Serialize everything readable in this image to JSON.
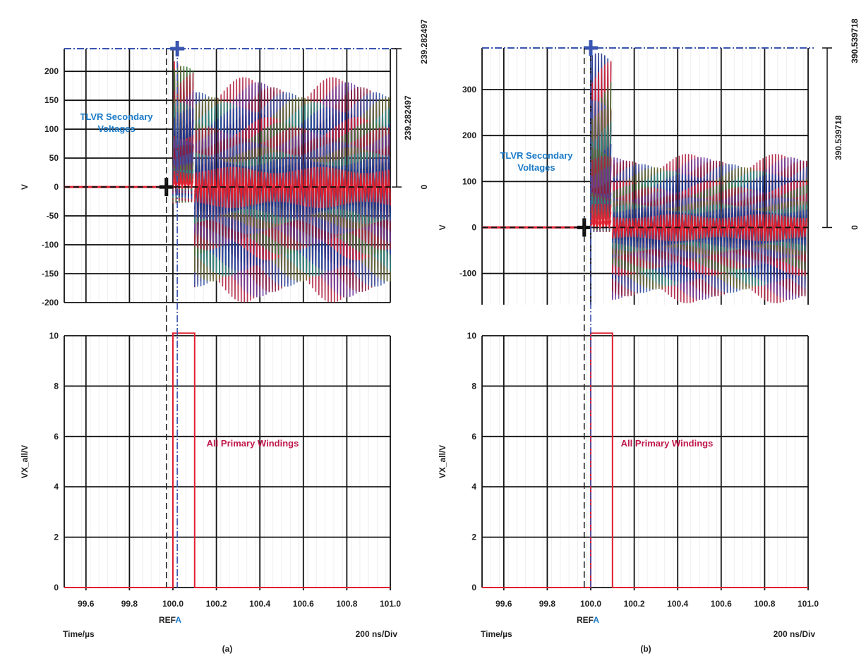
{
  "colors": {
    "annotation_blue": "#1a7ac8",
    "annotation_red": "#c0184a",
    "trace_red": "#e02030",
    "cursor_blue": "#3a55b0"
  },
  "chart_data": [
    {
      "panel": "a",
      "position": "top",
      "type": "line",
      "ylabel": "V",
      "ylim": [
        -200,
        239.282497
      ],
      "yticks": [
        200,
        150,
        100,
        50,
        0,
        -50,
        -100,
        -150,
        -200
      ],
      "xlim": [
        99.5,
        101.0
      ],
      "grid": true,
      "annotation": "TLVR Secondary Voltages",
      "cursor_readout": {
        "top": "239.282497",
        "span": "239.282497",
        "bottom": "0"
      },
      "cursor_x": [
        99.97,
        100.02
      ],
      "envelope": [
        {
          "x_start": 99.5,
          "x_end": 100.0,
          "min": 0,
          "max": 0
        },
        {
          "x_start": 100.0,
          "x_end": 100.1,
          "min": -30,
          "max": 230
        },
        {
          "x_start": 100.1,
          "x_end": 101.0,
          "min": -200,
          "max": 190
        }
      ]
    },
    {
      "panel": "a",
      "position": "bottom",
      "type": "line",
      "ylabel": "VX_all/V",
      "ylim": [
        0,
        10
      ],
      "yticks": [
        10,
        8,
        6,
        4,
        2,
        0
      ],
      "xlim": [
        99.5,
        101.0
      ],
      "xticks": [
        "99.6",
        "99.8",
        "100.0",
        "100.2",
        "100.4",
        "100.6",
        "100.8",
        "101.0"
      ],
      "grid": true,
      "annotation": "All Primary Windings",
      "series": [
        {
          "x": [
            99.5,
            100.0,
            100.0,
            100.1,
            100.1,
            101.0
          ],
          "y": [
            0,
            0,
            10.1,
            10.1,
            0,
            0
          ]
        }
      ],
      "ref_label": "REF",
      "ref_marker": "A",
      "xlabel": "Time/µs",
      "timebase": "200 ns/Div",
      "caption": "(a)"
    },
    {
      "panel": "b",
      "position": "top",
      "type": "line",
      "ylabel": "V",
      "ylim": [
        -168,
        390.539718
      ],
      "yticks": [
        300,
        200,
        100,
        0,
        -100
      ],
      "xlim": [
        99.5,
        101.0
      ],
      "grid": true,
      "annotation": "TLVR Secondary Voltages",
      "cursor_readout": {
        "top": "390.539718",
        "span": "390.539718",
        "bottom": "0"
      },
      "cursor_x": [
        99.97,
        100.0
      ],
      "envelope": [
        {
          "x_start": 99.5,
          "x_end": 100.0,
          "min": 0,
          "max": 0
        },
        {
          "x_start": 100.0,
          "x_end": 100.1,
          "min": -10,
          "max": 380
        },
        {
          "x_start": 100.1,
          "x_end": 101.0,
          "min": -165,
          "max": 160
        }
      ]
    },
    {
      "panel": "b",
      "position": "bottom",
      "type": "line",
      "ylabel": "VX_all/V",
      "ylim": [
        0,
        10
      ],
      "yticks": [
        10,
        8,
        6,
        4,
        2,
        0
      ],
      "xlim": [
        99.5,
        101.0
      ],
      "xticks": [
        "99.6",
        "99.8",
        "100.0",
        "100.2",
        "100.4",
        "100.6",
        "100.8",
        "101.0"
      ],
      "grid": true,
      "annotation": "All Primary Windings",
      "series": [
        {
          "x": [
            99.5,
            100.0,
            100.0,
            100.1,
            100.1,
            101.0
          ],
          "y": [
            0,
            0,
            10.1,
            10.1,
            0,
            0
          ]
        }
      ],
      "ref_label": "REF",
      "ref_marker": "A",
      "xlabel": "Time/µs",
      "timebase": "200 ns/Div",
      "caption": "(b)"
    }
  ]
}
